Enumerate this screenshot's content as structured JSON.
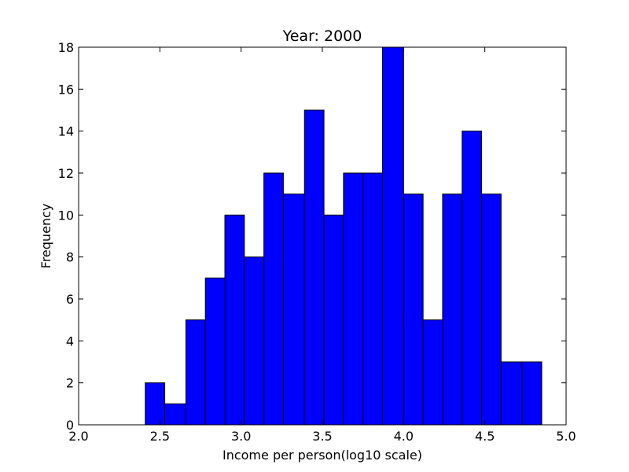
{
  "chart_data": {
    "type": "bar",
    "title": "Year: 2000",
    "xlabel": "Income per person(log10 scale)",
    "ylabel": "Frequency",
    "xlim": [
      2.0,
      5.0
    ],
    "ylim": [
      0,
      18
    ],
    "x_ticks": [
      "2.0",
      "2.5",
      "3.0",
      "3.5",
      "4.0",
      "4.5",
      "5.0"
    ],
    "y_ticks": [
      "0",
      "2",
      "4",
      "6",
      "8",
      "10",
      "12",
      "14",
      "16",
      "18"
    ],
    "bar_color": "#0000ff",
    "bins": [
      {
        "start": 2.41,
        "end": 2.53,
        "value": 2
      },
      {
        "start": 2.53,
        "end": 2.66,
        "value": 1
      },
      {
        "start": 2.66,
        "end": 2.78,
        "value": 5
      },
      {
        "start": 2.78,
        "end": 2.9,
        "value": 7
      },
      {
        "start": 2.9,
        "end": 3.02,
        "value": 10
      },
      {
        "start": 3.02,
        "end": 3.14,
        "value": 8
      },
      {
        "start": 3.14,
        "end": 3.26,
        "value": 12
      },
      {
        "start": 3.26,
        "end": 3.39,
        "value": 11
      },
      {
        "start": 3.39,
        "end": 3.51,
        "value": 15
      },
      {
        "start": 3.51,
        "end": 3.63,
        "value": 10
      },
      {
        "start": 3.63,
        "end": 3.75,
        "value": 12
      },
      {
        "start": 3.75,
        "end": 3.87,
        "value": 12
      },
      {
        "start": 3.87,
        "end": 4.0,
        "value": 18
      },
      {
        "start": 4.0,
        "end": 4.12,
        "value": 11
      },
      {
        "start": 4.12,
        "end": 4.24,
        "value": 5
      },
      {
        "start": 4.24,
        "end": 4.36,
        "value": 11
      },
      {
        "start": 4.36,
        "end": 4.48,
        "value": 14
      },
      {
        "start": 4.48,
        "end": 4.6,
        "value": 11
      },
      {
        "start": 4.6,
        "end": 4.73,
        "value": 3
      },
      {
        "start": 4.73,
        "end": 4.85,
        "value": 3
      }
    ]
  }
}
